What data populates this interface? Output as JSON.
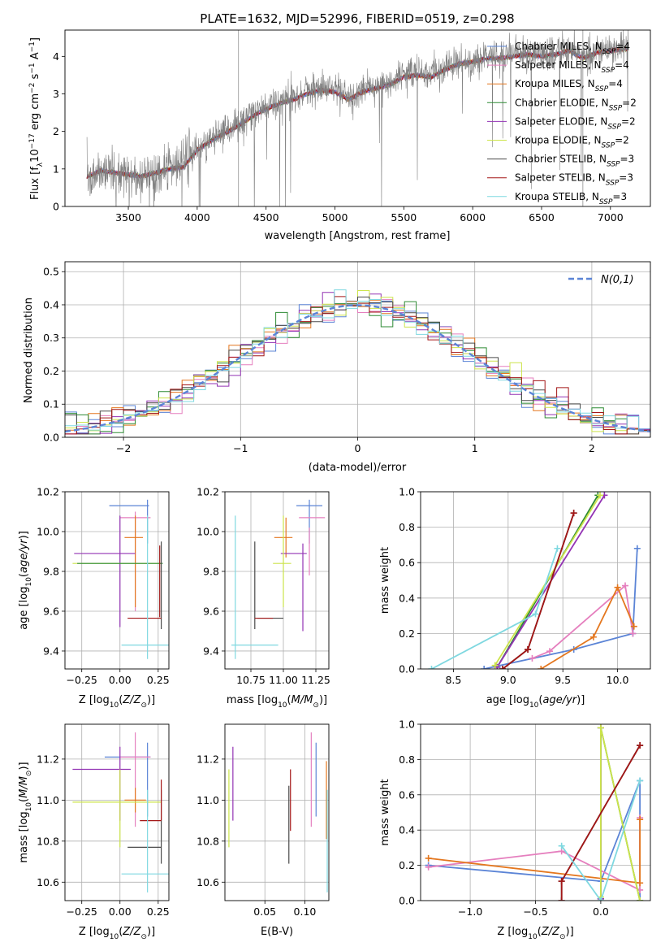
{
  "figure": {
    "title": "PLATE=1632, MJD=52996, FIBERID=0519, z=0.298"
  },
  "chart_data": [
    {
      "type": "line",
      "id": "spectrum",
      "xlabel": "wavelength [Angstrom, rest frame]",
      "ylabel": "Flux [f_λ 10^-17 erg cm^-2 s^-1 A^-1]",
      "xlim": [
        3040,
        7290
      ],
      "ylim": [
        0,
        4.7
      ],
      "xticks": [
        3500,
        4000,
        4500,
        5000,
        5500,
        6000,
        6500,
        7000
      ],
      "yticks": [
        0,
        1,
        2,
        3,
        4
      ],
      "grid": false,
      "legend_position": "top-right",
      "observed_spectrum": {
        "color": "#808080",
        "wavelength": [
          3200,
          3300,
          3400,
          3500,
          3600,
          3700,
          3800,
          3900,
          4000,
          4100,
          4200,
          4300,
          4400,
          4500,
          4600,
          4700,
          4800,
          4900,
          5000,
          5100,
          5200,
          5300,
          5400,
          5500,
          5600,
          5700,
          5800,
          5900,
          6000,
          6100,
          6200,
          6300,
          6400,
          6500,
          6600,
          6700,
          6800,
          6900,
          7000,
          7100
        ],
        "flux": [
          0.8,
          0.95,
          0.9,
          0.85,
          0.8,
          0.9,
          1.05,
          1.1,
          1.5,
          1.8,
          2.0,
          2.2,
          2.45,
          2.65,
          2.8,
          2.9,
          3.05,
          3.15,
          3.1,
          2.9,
          3.1,
          3.2,
          3.3,
          3.5,
          3.55,
          3.5,
          3.7,
          3.85,
          3.9,
          4.0,
          4.0,
          4.05,
          4.1,
          4.05,
          4.1,
          4.2,
          4.0,
          4.15,
          4.2,
          4.25
        ]
      },
      "model_wavelength": [
        3200,
        3300,
        3400,
        3500,
        3600,
        3700,
        3800,
        3900,
        4000,
        4100,
        4200,
        4300,
        4400,
        4500,
        4600,
        4700,
        4800,
        4900,
        5000,
        5100,
        5200,
        5300,
        5400,
        5500,
        5600,
        5700,
        5800,
        5900,
        6000,
        6100,
        6200,
        6300,
        6400,
        6500,
        6600,
        6700,
        6800,
        6900,
        7000,
        7100
      ],
      "model_flux": [
        0.8,
        0.95,
        0.9,
        0.85,
        0.8,
        0.9,
        1.0,
        1.05,
        1.5,
        1.75,
        1.95,
        2.15,
        2.4,
        2.6,
        2.75,
        2.85,
        3.0,
        3.1,
        3.05,
        2.85,
        3.05,
        3.15,
        3.25,
        3.45,
        3.5,
        3.45,
        3.65,
        3.8,
        3.85,
        3.95,
        3.95,
        4.0,
        4.05,
        4.0,
        4.05,
        4.15,
        3.95,
        4.1,
        4.15,
        4.2
      ],
      "series": [
        {
          "name": "Chabrier MILES, N_SSP=4",
          "color": "#5b84d6"
        },
        {
          "name": "Salpeter MILES, N_SSP=4",
          "color": "#e57fbe"
        },
        {
          "name": "Kroupa MILES, N_SSP=4",
          "color": "#e4771f"
        },
        {
          "name": "Chabrier ELODIE, N_SSP=2",
          "color": "#2d8a33"
        },
        {
          "name": "Salpeter ELODIE, N_SSP=2",
          "color": "#9333b4"
        },
        {
          "name": "Kroupa ELODIE, N_SSP=2",
          "color": "#cce44a"
        },
        {
          "name": "Chabrier STELIB, N_SSP=3",
          "color": "#4a4a4a"
        },
        {
          "name": "Salpeter STELIB, N_SSP=3",
          "color": "#a31616"
        },
        {
          "name": "Kroupa STELIB, N_SSP=3",
          "color": "#7fd8e0"
        }
      ]
    },
    {
      "type": "line",
      "id": "residuals",
      "xlabel": "(data-model)/error",
      "ylabel": "Normed distribution",
      "xlim": [
        -2.5,
        2.5
      ],
      "ylim": [
        0,
        0.53
      ],
      "xticks": [
        -2,
        -1,
        0,
        1,
        2
      ],
      "yticks": [
        0.0,
        0.1,
        0.2,
        0.3,
        0.4,
        0.5
      ],
      "grid": true,
      "legend_position": "top-right",
      "legend_label": "N(0,1)",
      "gaussian_color": "#5b84d6",
      "bin_width": 0.1
    },
    {
      "type": "scatter",
      "id": "age-vs-z",
      "xlabel": "Z [log10(Z/Z⊙)]",
      "ylabel": "age  [log10(age/yr)]",
      "xlim": [
        -0.36,
        0.32
      ],
      "ylim": [
        9.31,
        10.2
      ],
      "xticks": [
        -0.25,
        0.0,
        0.25
      ],
      "yticks": [
        9.4,
        9.6,
        9.8,
        10.0,
        10.2
      ],
      "grid": true,
      "points": [
        {
          "series": "Chabrier MILES",
          "x": 0.06,
          "xerr": 0.13,
          "y": 10.13,
          "yerr": 0.0
        },
        {
          "series": "Chabrier MILES",
          "x": 0.18,
          "xerr": 0.0,
          "y": 10.05,
          "yerr": 0.11
        },
        {
          "series": "Salpeter MILES",
          "x": 0.1,
          "xerr": 0.1,
          "y": 10.07,
          "yerr": 0.0
        },
        {
          "series": "Salpeter MILES",
          "x": 0.1,
          "xerr": 0.0,
          "y": 9.85,
          "yerr": 0.25
        },
        {
          "series": "Kroupa MILES",
          "x": 0.09,
          "xerr": 0.06,
          "y": 9.97,
          "yerr": 0.0
        },
        {
          "series": "Kroupa MILES",
          "x": 0.1,
          "xerr": 0.0,
          "y": 9.85,
          "yerr": 0.23
        },
        {
          "series": "Salpeter ELODIE",
          "x": -0.1,
          "xerr": 0.2,
          "y": 9.89,
          "yerr": 0.0
        },
        {
          "series": "Salpeter ELODIE",
          "x": 0.0,
          "xerr": 0.0,
          "y": 9.8,
          "yerr": 0.28
        },
        {
          "series": "Kroupa ELODIE",
          "x": -0.02,
          "xerr": 0.29,
          "y": 9.84,
          "yerr": 0.0
        },
        {
          "series": "Chabrier ELODIE",
          "x": 0.0,
          "xerr": 0.28,
          "y": 9.84,
          "yerr": 0.0
        },
        {
          "series": "Chabrier STELIB",
          "x": 0.27,
          "xerr": 0.0,
          "y": 9.73,
          "yerr": 0.22
        },
        {
          "series": "Salpeter STELIB",
          "x": 0.16,
          "xerr": 0.11,
          "y": 9.565,
          "yerr": 0.0
        },
        {
          "series": "Salpeter STELIB",
          "x": 0.26,
          "xerr": 0.0,
          "y": 9.75,
          "yerr": 0.18
        },
        {
          "series": "Kroupa STELIB",
          "x": 0.17,
          "xerr": 0.16,
          "y": 9.43,
          "yerr": 0.0
        },
        {
          "series": "Kroupa STELIB",
          "x": 0.18,
          "xerr": 0.0,
          "y": 9.72,
          "yerr": 0.36
        }
      ]
    },
    {
      "type": "scatter",
      "id": "age-vs-mass",
      "xlabel": "mass [log10(M/M⊙)]",
      "ylabel": "",
      "xlim": [
        10.55,
        11.35
      ],
      "ylim": [
        9.31,
        10.2
      ],
      "xticks": [
        10.75,
        11.0,
        11.25
      ],
      "yticks": [
        9.4,
        9.6,
        9.8,
        10.0,
        10.2
      ],
      "grid": true,
      "points": [
        {
          "series": "Chabrier MILES",
          "x": 11.2,
          "xerr": 0.1,
          "y": 10.13,
          "yerr": 0.0
        },
        {
          "series": "Chabrier MILES",
          "x": 11.2,
          "xerr": 0.0,
          "y": 10.05,
          "yerr": 0.11
        },
        {
          "series": "Salpeter MILES",
          "x": 11.22,
          "xerr": 0.1,
          "y": 10.07,
          "yerr": 0.0
        },
        {
          "series": "Salpeter MILES",
          "x": 11.2,
          "xerr": 0.0,
          "y": 9.9,
          "yerr": 0.12
        },
        {
          "series": "Kroupa MILES",
          "x": 11.0,
          "xerr": 0.07,
          "y": 9.97,
          "yerr": 0.0
        },
        {
          "series": "Kroupa MILES",
          "x": 11.02,
          "xerr": 0.0,
          "y": 9.97,
          "yerr": 0.1
        },
        {
          "series": "Salpeter ELODIE",
          "x": 11.08,
          "xerr": 0.1,
          "y": 9.89,
          "yerr": 0.0
        },
        {
          "series": "Salpeter ELODIE",
          "x": 11.15,
          "xerr": 0.0,
          "y": 9.72,
          "yerr": 0.22
        },
        {
          "series": "Kroupa ELODIE",
          "x": 10.99,
          "xerr": 0.07,
          "y": 9.84,
          "yerr": 0.0
        },
        {
          "series": "Kroupa ELODIE",
          "x": 11.0,
          "xerr": 0.0,
          "y": 9.85,
          "yerr": 0.23
        },
        {
          "series": "Chabrier STELIB",
          "x": 10.9,
          "xerr": 0.1,
          "y": 9.565,
          "yerr": 0.0
        },
        {
          "series": "Chabrier STELIB",
          "x": 10.78,
          "xerr": 0.0,
          "y": 9.73,
          "yerr": 0.22
        },
        {
          "series": "Salpeter STELIB",
          "x": 10.85,
          "xerr": 0.07,
          "y": 9.565,
          "yerr": 0.0
        },
        {
          "series": "Kroupa STELIB",
          "x": 10.78,
          "xerr": 0.18,
          "y": 9.43,
          "yerr": 0.0
        },
        {
          "series": "Kroupa STELIB",
          "x": 10.63,
          "xerr": 0.0,
          "y": 9.72,
          "yerr": 0.36
        }
      ]
    },
    {
      "type": "line",
      "id": "mass-weight-vs-age",
      "xlabel": "age  [log10(age/yr)]",
      "ylabel": "mass weight",
      "xlim": [
        8.2,
        10.3
      ],
      "ylim": [
        0,
        1.0
      ],
      "xticks": [
        8.5,
        9.0,
        9.5,
        10.0
      ],
      "yticks": [
        0.0,
        0.2,
        0.4,
        0.6,
        0.8,
        1.0
      ],
      "grid": true,
      "series": [
        {
          "name": "Chabrier MILES",
          "x": [
            8.78,
            9.6,
            10.14,
            10.18
          ],
          "y": [
            0.0,
            0.11,
            0.2,
            0.68
          ]
        },
        {
          "name": "Salpeter MILES",
          "x": [
            9.22,
            9.38,
            10.07,
            10.14
          ],
          "y": [
            0.06,
            0.1,
            0.47,
            0.2
          ]
        },
        {
          "name": "Kroupa MILES",
          "x": [
            9.3,
            9.78,
            10.0,
            10.15
          ],
          "y": [
            0.0,
            0.18,
            0.46,
            0.24
          ]
        },
        {
          "name": "Chabrier ELODIE",
          "x": [
            8.9,
            9.82
          ],
          "y": [
            0.01,
            0.98
          ]
        },
        {
          "name": "Salpeter ELODIE",
          "x": [
            8.9,
            9.88
          ],
          "y": [
            0.01,
            0.98
          ]
        },
        {
          "name": "Kroupa ELODIE",
          "x": [
            8.88,
            9.84
          ],
          "y": [
            0.02,
            0.98
          ]
        },
        {
          "name": "Chabrier STELIB",
          "x": [
            8.95,
            9.18,
            9.6
          ],
          "y": [
            0.0,
            0.11,
            0.88
          ]
        },
        {
          "name": "Salpeter STELIB",
          "x": [
            8.95,
            9.18,
            9.6
          ],
          "y": [
            0.0,
            0.11,
            0.88
          ]
        },
        {
          "name": "Kroupa STELIB",
          "x": [
            8.3,
            9.25,
            9.45
          ],
          "y": [
            0.0,
            0.31,
            0.68
          ]
        }
      ]
    },
    {
      "type": "scatter",
      "id": "mass-vs-z",
      "xlabel": "Z [log10(Z/Z⊙)]",
      "ylabel": "mass [log10(M/M⊙)]",
      "xlim": [
        -0.36,
        0.32
      ],
      "ylim": [
        10.51,
        11.37
      ],
      "xticks": [
        -0.25,
        0.0,
        0.25
      ],
      "yticks": [
        10.6,
        10.8,
        11.0,
        11.2
      ],
      "grid": true,
      "points": [
        {
          "series": "Chabrier MILES",
          "x": 0.05,
          "xerr": 0.15,
          "y": 11.21,
          "yerr": 0.0
        },
        {
          "series": "Chabrier MILES",
          "x": 0.18,
          "xerr": 0.0,
          "y": 11.1,
          "yerr": 0.18
        },
        {
          "series": "Salpeter MILES",
          "x": 0.1,
          "xerr": 0.1,
          "y": 11.21,
          "yerr": 0.0
        },
        {
          "series": "Salpeter MILES",
          "x": 0.1,
          "xerr": 0.0,
          "y": 11.1,
          "yerr": 0.23
        },
        {
          "series": "Kroupa MILES",
          "x": 0.1,
          "xerr": 0.07,
          "y": 11.0,
          "yerr": 0.0
        },
        {
          "series": "Kroupa MILES",
          "x": 0.1,
          "xerr": 0.0,
          "y": 11.0,
          "yerr": 0.06
        },
        {
          "series": "Salpeter ELODIE",
          "x": -0.12,
          "xerr": 0.19,
          "y": 11.15,
          "yerr": 0.0
        },
        {
          "series": "Salpeter ELODIE",
          "x": 0.0,
          "xerr": 0.0,
          "y": 11.08,
          "yerr": 0.18
        },
        {
          "series": "Kroupa ELODIE",
          "x": -0.02,
          "xerr": 0.29,
          "y": 10.99,
          "yerr": 0.0
        },
        {
          "series": "Kroupa ELODIE",
          "x": 0.0,
          "xerr": 0.0,
          "y": 10.96,
          "yerr": 0.19
        },
        {
          "series": "Chabrier STELIB",
          "x": 0.16,
          "xerr": 0.11,
          "y": 10.77,
          "yerr": 0.0
        },
        {
          "series": "Chabrier STELIB",
          "x": 0.27,
          "xerr": 0.0,
          "y": 10.87,
          "yerr": 0.18
        },
        {
          "series": "Salpeter STELIB",
          "x": 0.2,
          "xerr": 0.07,
          "y": 10.9,
          "yerr": 0.0
        },
        {
          "series": "Salpeter STELIB",
          "x": 0.27,
          "xerr": 0.0,
          "y": 11.0,
          "yerr": 0.1
        },
        {
          "series": "Kroupa STELIB",
          "x": 0.17,
          "xerr": 0.16,
          "y": 10.64,
          "yerr": 0.0
        },
        {
          "series": "Kroupa STELIB",
          "x": 0.18,
          "xerr": 0.0,
          "y": 10.8,
          "yerr": 0.25
        }
      ]
    },
    {
      "type": "scatter",
      "id": "mass-vs-ebv",
      "xlabel": "E(B-V)",
      "ylabel": "",
      "xlim": [
        0.0,
        0.13
      ],
      "ylim": [
        10.51,
        11.37
      ],
      "xticks": [
        0.05,
        0.1
      ],
      "yticks": [
        10.6,
        10.8,
        11.0,
        11.2
      ],
      "grid": true,
      "points": [
        {
          "series": "Kroupa ELODIE",
          "x": 0.005,
          "xerr": 0.0,
          "y": 10.96,
          "yerr": 0.19
        },
        {
          "series": "Salpeter ELODIE",
          "x": 0.01,
          "xerr": 0.0,
          "y": 11.08,
          "yerr": 0.18
        },
        {
          "series": "Chabrier STELIB",
          "x": 0.08,
          "xerr": 0.0,
          "y": 10.88,
          "yerr": 0.19
        },
        {
          "series": "Salpeter STELIB",
          "x": 0.082,
          "xerr": 0.0,
          "y": 11.0,
          "yerr": 0.15
        },
        {
          "series": "Salpeter MILES",
          "x": 0.108,
          "xerr": 0.0,
          "y": 11.1,
          "yerr": 0.23
        },
        {
          "series": "Chabrier MILES",
          "x": 0.114,
          "xerr": 0.0,
          "y": 11.1,
          "yerr": 0.18
        },
        {
          "series": "Kroupa MILES",
          "x": 0.127,
          "xerr": 0.0,
          "y": 11.0,
          "yerr": 0.19
        },
        {
          "series": "Kroupa STELIB",
          "x": 0.128,
          "xerr": 0.0,
          "y": 10.8,
          "yerr": 0.25
        }
      ]
    },
    {
      "type": "line",
      "id": "mass-weight-vs-z",
      "xlabel": "Z [log10(Z/Z⊙)]",
      "ylabel": "mass weight",
      "xlim": [
        -1.38,
        0.38
      ],
      "ylim": [
        0,
        1.0
      ],
      "xticks": [
        -1.0,
        -0.5,
        0.0
      ],
      "yticks": [
        0.0,
        0.2,
        0.4,
        0.6,
        0.8,
        1.0
      ],
      "grid": true,
      "series": [
        {
          "name": "Chabrier MILES",
          "x": [
            -1.32,
            0.0,
            0.3,
            0.3
          ],
          "y": [
            0.2,
            0.11,
            0.68,
            0.0
          ]
        },
        {
          "name": "Salpeter MILES",
          "x": [
            -1.32,
            -0.3,
            0.3,
            0.3
          ],
          "y": [
            0.19,
            0.28,
            0.06,
            0.47
          ]
        },
        {
          "name": "Kroupa MILES",
          "x": [
            -1.32,
            0.3,
            0.3
          ],
          "y": [
            0.24,
            0.1,
            0.46
          ]
        },
        {
          "name": "Chabrier ELODIE",
          "x": [
            0.0,
            0.0,
            0.3
          ],
          "y": [
            0.01,
            0.98,
            0.0
          ]
        },
        {
          "name": "Salpeter ELODIE",
          "x": [
            0.0,
            0.0
          ],
          "y": [
            0.01,
            0.98
          ]
        },
        {
          "name": "Kroupa ELODIE",
          "x": [
            0.0,
            0.0,
            0.3
          ],
          "y": [
            0.02,
            0.98,
            0.0
          ]
        },
        {
          "name": "Chabrier STELIB",
          "x": [
            -0.3,
            -0.3,
            0.3
          ],
          "y": [
            0.0,
            0.11,
            0.88
          ]
        },
        {
          "name": "Salpeter STELIB",
          "x": [
            -0.3,
            -0.3,
            0.3
          ],
          "y": [
            0.0,
            0.11,
            0.88
          ]
        },
        {
          "name": "Kroupa STELIB",
          "x": [
            -0.3,
            0.0,
            0.3
          ],
          "y": [
            0.31,
            0.0,
            0.68
          ]
        }
      ]
    }
  ]
}
